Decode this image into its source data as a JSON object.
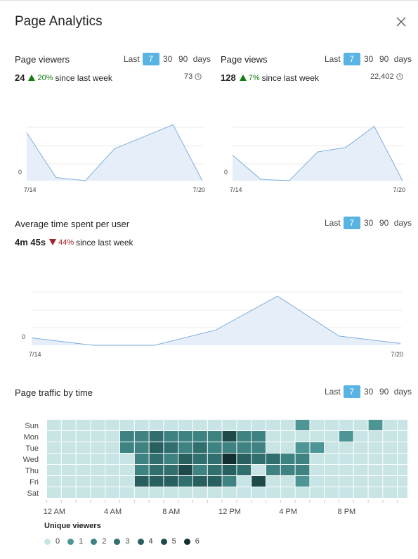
{
  "title": "Page Analytics",
  "range_labels": {
    "last": "Last",
    "opt7": "7",
    "opt30": "30",
    "opt90": "90",
    "days": "days"
  },
  "viewers": {
    "title": "Page viewers",
    "value": "24",
    "change": "20%",
    "since": "since last week",
    "total": "73",
    "trend": "up"
  },
  "views": {
    "title": "Page views",
    "value": "128",
    "change": "7%",
    "since": "since last week",
    "total": "22,402",
    "trend": "up"
  },
  "avgtime": {
    "title": "Average time spent per user",
    "value": "4m 45s",
    "change": "44%",
    "since": "since last week",
    "trend": "down"
  },
  "traffic": {
    "title": "Page traffic by time",
    "legend_title": "Unique viewers"
  },
  "colors": {
    "line": "#7eaede",
    "fill": "#e6eff9",
    "selected": "#59b4e3",
    "up": "#107c10",
    "down": "#a4262c",
    "heat": [
      "#c8e4e4",
      "#4e9696",
      "#3e8282",
      "#316f6f",
      "#285f5f",
      "#1f4a4a",
      "#12302f"
    ]
  },
  "chart_data": [
    {
      "type": "area",
      "name": "viewers",
      "x": [
        "7/14",
        "7/15",
        "7/16",
        "7/17",
        "7/18",
        "7/19",
        "7/20"
      ],
      "y": [
        6,
        0.4,
        0,
        4,
        5.5,
        7,
        0
      ],
      "xlabels": [
        "7/14",
        "7/20"
      ],
      "ytick": "0",
      "ylim": [
        0,
        8
      ]
    },
    {
      "type": "area",
      "name": "views",
      "x": [
        "7/14",
        "7/15",
        "7/16",
        "7/17",
        "7/18",
        "7/19",
        "7/20"
      ],
      "y": [
        4,
        0.2,
        0,
        4.5,
        5.2,
        8.5,
        0
      ],
      "xlabels": [
        "7/14",
        "7/20"
      ],
      "ytick": "0",
      "ylim": [
        0,
        10
      ]
    },
    {
      "type": "area",
      "name": "avgtime",
      "x": [
        "7/14",
        "7/15",
        "7/16",
        "7/17",
        "7/18",
        "7/19",
        "7/20"
      ],
      "y": [
        1.2,
        0,
        0,
        2.5,
        8,
        1.5,
        0.3
      ],
      "xlabels": [
        "7/14",
        "7/20"
      ],
      "ytick": "0",
      "ylim": [
        0,
        11
      ]
    },
    {
      "type": "heatmap",
      "name": "traffic",
      "rows": [
        "Sun",
        "Mon",
        "Tue",
        "Wed",
        "Thu",
        "Fri",
        "Sat"
      ],
      "xticks": [
        "12 AM",
        "4 AM",
        "8 AM",
        "12 PM",
        "4 PM",
        "8 PM"
      ],
      "values": [
        [
          0,
          0,
          0,
          0,
          0,
          0,
          0,
          0,
          0,
          0,
          0,
          0,
          0,
          0,
          0,
          0,
          0,
          1,
          0,
          0,
          0,
          0,
          1,
          0,
          0
        ],
        [
          0,
          0,
          0,
          0,
          0,
          2,
          2,
          3,
          2,
          2,
          2,
          2,
          5,
          2,
          2,
          0,
          0,
          0,
          0,
          0,
          1,
          0,
          0,
          0,
          0
        ],
        [
          0,
          0,
          0,
          0,
          0,
          2,
          2,
          4,
          3,
          2,
          3,
          2,
          2,
          2,
          2,
          0,
          0,
          1,
          1,
          0,
          0,
          0,
          0,
          0,
          0
        ],
        [
          0,
          0,
          0,
          0,
          0,
          0,
          2,
          3,
          2,
          4,
          3,
          3,
          6,
          4,
          3,
          3,
          2,
          2,
          0,
          0,
          0,
          0,
          0,
          0,
          0
        ],
        [
          0,
          0,
          0,
          0,
          0,
          0,
          2,
          3,
          3,
          5,
          2,
          3,
          4,
          3,
          0,
          2,
          2,
          2,
          0,
          0,
          0,
          0,
          0,
          0,
          0
        ],
        [
          0,
          0,
          0,
          0,
          0,
          0,
          4,
          4,
          4,
          3,
          4,
          4,
          2,
          0,
          5,
          0,
          0,
          1,
          0,
          0,
          0,
          0,
          0,
          0,
          0
        ],
        [
          0,
          0,
          0,
          0,
          0,
          0,
          0,
          0,
          0,
          0,
          0,
          0,
          0,
          0,
          0,
          0,
          0,
          0,
          0,
          0,
          0,
          0,
          0,
          0,
          0
        ]
      ],
      "legend": [
        "0",
        "1",
        "2",
        "3",
        "4",
        "5",
        "6"
      ]
    }
  ]
}
